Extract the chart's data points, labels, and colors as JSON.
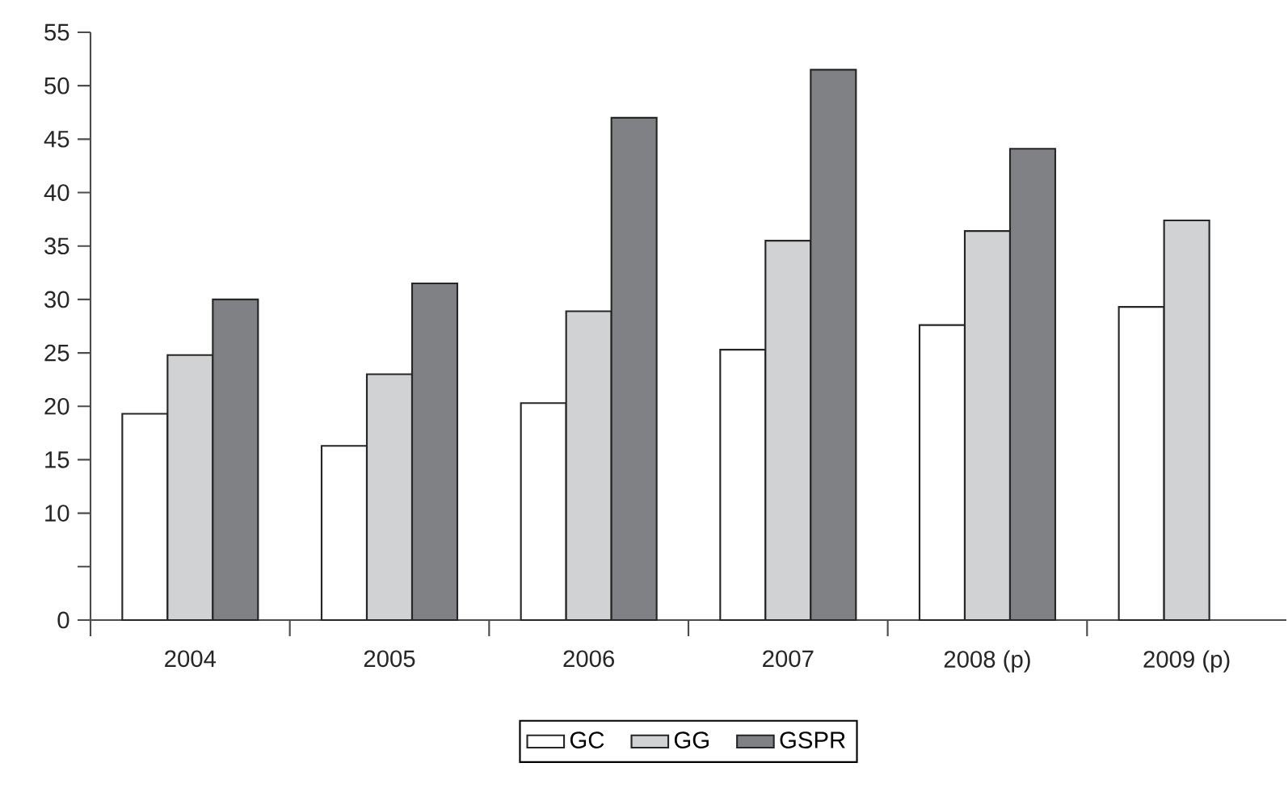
{
  "chart_data": {
    "type": "bar",
    "categories": [
      "2004",
      "2005",
      "2006",
      "2007",
      "2008 (p)",
      "2009 (p)"
    ],
    "series": [
      {
        "name": "GC",
        "color": "#ffffff",
        "values": [
          19.3,
          16.3,
          20.3,
          25.3,
          27.6,
          29.3
        ]
      },
      {
        "name": "GG",
        "color": "#d1d2d4",
        "values": [
          24.8,
          23.0,
          28.9,
          35.5,
          36.4,
          37.4
        ]
      },
      {
        "name": "GSPR",
        "color": "#808185",
        "values": [
          30.0,
          31.5,
          47.0,
          51.5,
          44.1,
          null
        ]
      }
    ],
    "ylim": [
      0,
      55
    ],
    "yticks": [
      0,
      {
        "value": 5,
        "label": null
      },
      10,
      15,
      20,
      25,
      30,
      35,
      40,
      45,
      50,
      55
    ],
    "grid": false,
    "legend": "bottom"
  }
}
